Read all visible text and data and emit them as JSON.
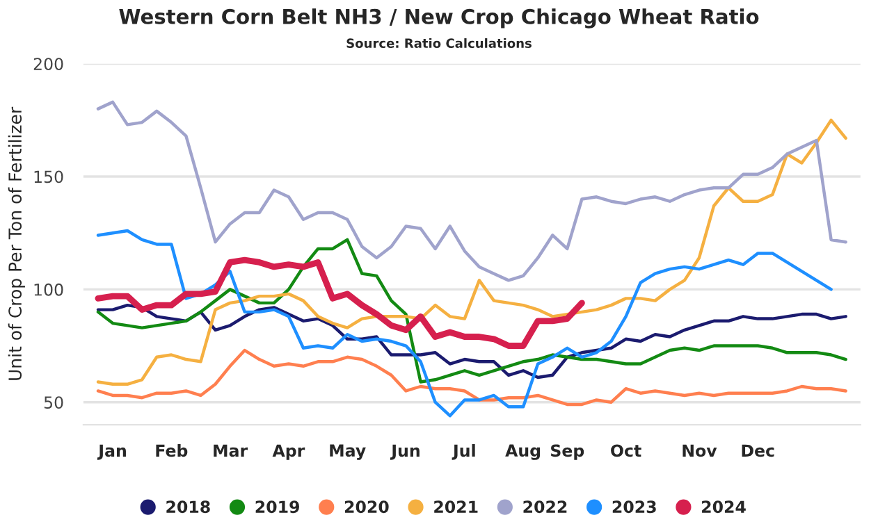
{
  "chart_data": {
    "type": "line",
    "title": "Western Corn Belt NH3 / New Crop Chicago Wheat Ratio",
    "subtitle": "Source: Ratio Calculations",
    "ylabel": "Unit of Crop Per Ton of Fertilizer",
    "categories": [
      null,
      "Jan",
      null,
      null,
      null,
      "Feb",
      null,
      null,
      null,
      "Mar",
      null,
      null,
      null,
      "Apr",
      null,
      null,
      null,
      "May",
      null,
      null,
      null,
      "Jun",
      null,
      null,
      null,
      "Jul",
      null,
      null,
      null,
      "Aug",
      null,
      null,
      "Sep",
      null,
      null,
      null,
      "Oct",
      null,
      null,
      null,
      null,
      "Nov",
      null,
      null,
      null,
      "Dec",
      null,
      null,
      null,
      null,
      null,
      null
    ],
    "ylim": [
      40,
      200
    ],
    "yticks": [
      50,
      100,
      150,
      200
    ],
    "grid": "y",
    "legend": "bottom",
    "marker": "none",
    "line_style": "solid",
    "series": [
      {
        "name": "2018",
        "color": "#1b1b6f",
        "values": [
          91,
          91,
          93,
          92,
          88,
          87,
          86,
          90,
          82,
          84,
          88,
          91,
          92,
          89,
          86,
          87,
          84,
          78,
          78,
          79,
          71,
          71,
          71,
          72,
          67,
          69,
          68,
          68,
          62,
          64,
          61,
          62,
          70,
          72,
          73,
          74,
          78,
          77,
          80,
          79,
          82,
          84,
          86,
          86,
          88,
          87,
          87,
          88,
          89,
          89,
          87,
          88
        ]
      },
      {
        "name": "2019",
        "color": "#138a13",
        "values": [
          90,
          85,
          84,
          83,
          84,
          85,
          86,
          90,
          95,
          100,
          97,
          94,
          94,
          100,
          110,
          118,
          118,
          122,
          107,
          106,
          95,
          89,
          59,
          60,
          62,
          64,
          62,
          64,
          66,
          68,
          69,
          71,
          70,
          69,
          69,
          68,
          67,
          67,
          70,
          73,
          74,
          73,
          75,
          75,
          75,
          75,
          74,
          72,
          72,
          72,
          71,
          69
        ]
      },
      {
        "name": "2020",
        "color": "#ff7f4f",
        "values": [
          55,
          53,
          53,
          52,
          54,
          54,
          55,
          53,
          58,
          66,
          73,
          69,
          66,
          67,
          66,
          68,
          68,
          70,
          69,
          66,
          62,
          55,
          57,
          56,
          56,
          55,
          51,
          51,
          52,
          52,
          53,
          51,
          49,
          49,
          51,
          50,
          56,
          54,
          55,
          54,
          53,
          54,
          53,
          54,
          54,
          54,
          54,
          55,
          57,
          56,
          56,
          55
        ]
      },
      {
        "name": "2021",
        "color": "#f5b041",
        "values": [
          59,
          58,
          58,
          60,
          70,
          71,
          69,
          68,
          91,
          94,
          95,
          97,
          97,
          98,
          95,
          88,
          85,
          83,
          87,
          88,
          88,
          88,
          87,
          93,
          88,
          87,
          104,
          95,
          94,
          93,
          91,
          88,
          89,
          90,
          91,
          93,
          96,
          96,
          95,
          100,
          104,
          114,
          137,
          145,
          139,
          139,
          142,
          160,
          156,
          165,
          175,
          167
        ]
      },
      {
        "name": "2022",
        "color": "#a0a3cc",
        "values": [
          180,
          183,
          173,
          174,
          179,
          174,
          168,
          145,
          121,
          129,
          134,
          134,
          144,
          141,
          131,
          134,
          134,
          131,
          119,
          114,
          119,
          128,
          127,
          118,
          128,
          117,
          110,
          107,
          104,
          106,
          114,
          124,
          118,
          140,
          141,
          139,
          138,
          140,
          141,
          139,
          142,
          144,
          145,
          145,
          151,
          151,
          154,
          160,
          163,
          166,
          122,
          121
        ]
      },
      {
        "name": "2023",
        "color": "#1e8fff",
        "values": [
          124,
          125,
          126,
          122,
          120,
          120,
          96,
          98,
          102,
          108,
          90,
          90,
          91,
          88,
          74,
          75,
          74,
          80,
          77,
          78,
          77,
          75,
          68,
          50,
          44,
          51,
          51,
          53,
          48,
          48,
          67,
          70,
          74,
          70,
          72,
          77,
          88,
          103,
          107,
          109,
          110,
          109,
          111,
          113,
          111,
          116,
          116,
          112,
          108,
          104,
          100,
          null
        ]
      },
      {
        "name": "2024",
        "color": "#d6204e",
        "values": [
          96,
          97,
          97,
          91,
          93,
          93,
          98,
          98,
          99,
          112,
          113,
          112,
          110,
          111,
          110,
          112,
          96,
          98,
          93,
          89,
          84,
          82,
          88,
          79,
          81,
          79,
          79,
          78,
          75,
          75,
          86,
          86,
          87,
          94,
          null,
          null,
          null,
          null,
          null,
          null,
          null,
          null,
          null,
          null,
          null,
          null,
          null,
          null,
          null,
          null,
          null,
          null
        ]
      }
    ]
  }
}
